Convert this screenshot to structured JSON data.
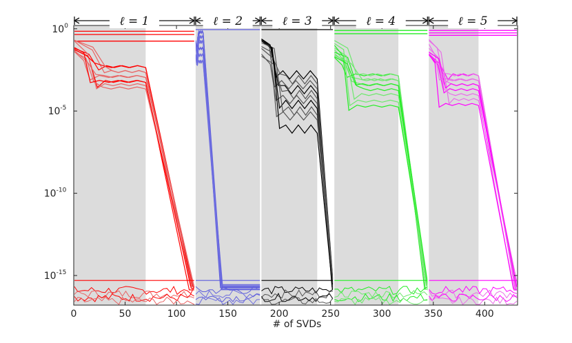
{
  "chart_data": {
    "type": "line",
    "title": "",
    "xlabel": "# of SVDs",
    "ylabel": "",
    "xlim": [
      0,
      432
    ],
    "ylim_log10": [
      -16.8,
      0.2
    ],
    "y_scale": "log",
    "grid": false,
    "x_ticks": [
      {
        "value": 0,
        "label": "0"
      },
      {
        "value": 50,
        "label": "50"
      },
      {
        "value": 100,
        "label": "100"
      },
      {
        "value": 150,
        "label": "150"
      },
      {
        "value": 200,
        "label": "200"
      },
      {
        "value": 250,
        "label": "250"
      },
      {
        "value": 300,
        "label": "300"
      },
      {
        "value": 350,
        "label": "350"
      },
      {
        "value": 400,
        "label": "400"
      }
    ],
    "y_ticks": [
      {
        "exponent": 0,
        "base": "10",
        "sup": "0"
      },
      {
        "exponent": -5,
        "base": "10",
        "sup": "-5"
      },
      {
        "exponent": -10,
        "base": "10",
        "sup": "-10"
      },
      {
        "exponent": -15,
        "base": "10",
        "sup": "-15"
      }
    ],
    "segments": [
      {
        "label": "ℓ = 1",
        "start": 0,
        "shade_end": 70,
        "plateau_end": 70,
        "drop_end": 118,
        "end": 118,
        "color": "#ff0000",
        "light_color": "#e86464",
        "n_lines": 10,
        "n_high": 3,
        "plateau_levels": [
          -2.3,
          -2.6,
          -2.9,
          -3.2,
          -3.4,
          -3.6
        ],
        "top_levels": [
          -0.15,
          -0.35,
          -0.75
        ]
      },
      {
        "label": "ℓ = 2",
        "start": 118,
        "shade_end": 182,
        "plateau_end": 126,
        "drop_end": 145,
        "end": 182,
        "color": "#5c5cdc",
        "light_color": "#6e6ee0",
        "n_lines": 12,
        "n_high": 1,
        "plateau_levels": [
          -0.2,
          -0.5,
          -0.8,
          -1.2,
          -1.6,
          -2.0
        ],
        "top_levels": [
          -0.05
        ]
      },
      {
        "label": "ℓ = 3",
        "start": 182,
        "shade_end": 237,
        "plateau_end": 237,
        "drop_end": 253,
        "end": 253,
        "color": "#000000",
        "light_color": "#555555",
        "n_lines": 10,
        "n_high": 1,
        "plateau_levels": [
          -2.8,
          -3.1,
          -3.4,
          -3.7,
          -4.0,
          -4.3,
          -4.6,
          -5.0,
          -5.3,
          -6.1
        ],
        "top_levels": [
          -0.05
        ]
      },
      {
        "label": "ℓ = 4",
        "start": 253,
        "shade_end": 316,
        "plateau_end": 316,
        "drop_end": 345,
        "end": 345,
        "color": "#22ee22",
        "light_color": "#6ee86e",
        "n_lines": 10,
        "n_high": 2,
        "plateau_levels": [
          -2.8,
          -3.1,
          -3.4,
          -3.7,
          -4.0,
          -4.4,
          -4.7
        ],
        "top_levels": [
          -0.1,
          -0.3
        ]
      },
      {
        "label": "ℓ = 5",
        "start": 345,
        "shade_end": 394,
        "plateau_end": 394,
        "drop_end": 432,
        "end": 432,
        "color": "#ff00ff",
        "light_color": "#e86ee8",
        "n_lines": 10,
        "n_high": 3,
        "plateau_levels": [
          -2.8,
          -3.1,
          -3.4,
          -3.7,
          -4.0,
          -4.3,
          -4.6
        ],
        "top_levels": [
          -0.1,
          -0.25,
          -0.4
        ]
      }
    ],
    "floor_level": -15.3,
    "noise_range": [
      -15.9,
      -16.8
    ],
    "shade_color": "#dcdcdc"
  }
}
